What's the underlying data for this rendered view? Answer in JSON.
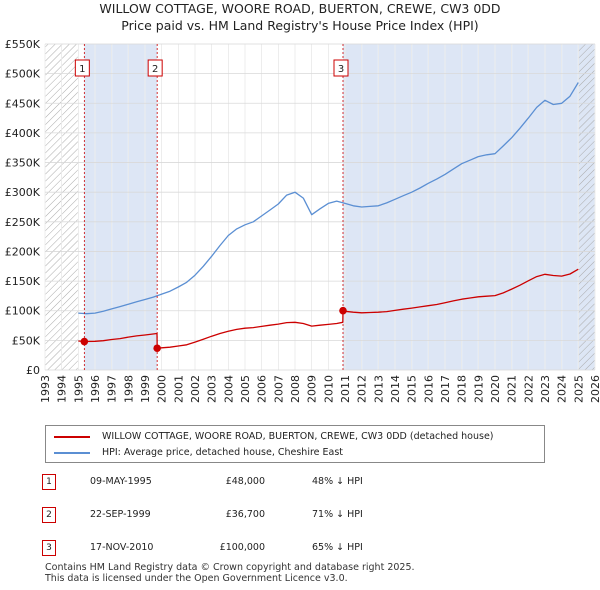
{
  "title_line1": "WILLOW COTTAGE, WOORE ROAD, BUERTON, CREWE, CW3 0DD",
  "title_line2": "Price paid vs. HM Land Registry's House Price Index (HPI)",
  "colors": {
    "property": "#cc0000",
    "hpi": "#5b8fd3",
    "band": "#dde6f5"
  },
  "chart_data": {
    "type": "line",
    "title": "Price paid vs. HM Land Registry's House Price Index (HPI)",
    "xlabel": "",
    "ylabel": "",
    "xlim": [
      1993,
      2026
    ],
    "ylim": [
      0,
      550000
    ],
    "x_ticks": [
      "1993",
      "1994",
      "1995",
      "1996",
      "1997",
      "1998",
      "1999",
      "2000",
      "2001",
      "2002",
      "2003",
      "2004",
      "2005",
      "2006",
      "2007",
      "2008",
      "2009",
      "2010",
      "2011",
      "2012",
      "2013",
      "2014",
      "2015",
      "2016",
      "2017",
      "2018",
      "2019",
      "2020",
      "2021",
      "2022",
      "2023",
      "2024",
      "2025",
      "2026"
    ],
    "y_ticks": [
      {
        "value": 0,
        "label": "£0"
      },
      {
        "value": 50000,
        "label": "£50K"
      },
      {
        "value": 100000,
        "label": "£100K"
      },
      {
        "value": 150000,
        "label": "£150K"
      },
      {
        "value": 200000,
        "label": "£200K"
      },
      {
        "value": 250000,
        "label": "£250K"
      },
      {
        "value": 300000,
        "label": "£300K"
      },
      {
        "value": 350000,
        "label": "£350K"
      },
      {
        "value": 400000,
        "label": "£400K"
      },
      {
        "value": 450000,
        "label": "£450K"
      },
      {
        "value": 500000,
        "label": "£500K"
      },
      {
        "value": 550000,
        "label": "£550K"
      }
    ],
    "grid": true,
    "hatched_ranges": [
      [
        1993,
        1995.0
      ],
      [
        2025.0,
        2026
      ]
    ],
    "shaded_bands": [
      [
        1995.36,
        1999.73
      ],
      [
        2010.88,
        2026
      ]
    ],
    "series": [
      {
        "name": "WILLOW COTTAGE, WOORE ROAD, BUERTON, CREWE, CW3 0DD (detached house)",
        "color": "#cc0000",
        "points": [
          [
            1995.0,
            49000
          ],
          [
            1995.36,
            48000
          ],
          [
            1996,
            48500
          ],
          [
            1996.5,
            49500
          ],
          [
            1997,
            51500
          ],
          [
            1997.5,
            53000
          ],
          [
            1998,
            55500
          ],
          [
            1998.5,
            57500
          ],
          [
            1999,
            59000
          ],
          [
            1999.72,
            61500
          ],
          [
            1999.73,
            36700
          ],
          [
            2000,
            37500
          ],
          [
            2000.5,
            38500
          ],
          [
            2001,
            40500
          ],
          [
            2001.5,
            42500
          ],
          [
            2002,
            47000
          ],
          [
            2002.5,
            52000
          ],
          [
            2003,
            57000
          ],
          [
            2003.5,
            61500
          ],
          [
            2004,
            65500
          ],
          [
            2004.5,
            68500
          ],
          [
            2005,
            70500
          ],
          [
            2005.5,
            71500
          ],
          [
            2006,
            73500
          ],
          [
            2006.5,
            75500
          ],
          [
            2007,
            77500
          ],
          [
            2007.5,
            80000
          ],
          [
            2008,
            80500
          ],
          [
            2008.5,
            78500
          ],
          [
            2009,
            74000
          ],
          [
            2009.5,
            75500
          ],
          [
            2010,
            77000
          ],
          [
            2010.5,
            78500
          ],
          [
            2010.87,
            80500
          ],
          [
            2010.88,
            100000
          ],
          [
            2011,
            99000
          ],
          [
            2011.5,
            97500
          ],
          [
            2012,
            96500
          ],
          [
            2012.5,
            97000
          ],
          [
            2013,
            97500
          ],
          [
            2013.5,
            98500
          ],
          [
            2014,
            100500
          ],
          [
            2014.5,
            102500
          ],
          [
            2015,
            104500
          ],
          [
            2015.5,
            106500
          ],
          [
            2016,
            108500
          ],
          [
            2016.5,
            110500
          ],
          [
            2017,
            113500
          ],
          [
            2017.5,
            116500
          ],
          [
            2018,
            119500
          ],
          [
            2018.5,
            121500
          ],
          [
            2019,
            123500
          ],
          [
            2019.5,
            124500
          ],
          [
            2020,
            125500
          ],
          [
            2020.5,
            130000
          ],
          [
            2021,
            136500
          ],
          [
            2021.5,
            143000
          ],
          [
            2022,
            150500
          ],
          [
            2022.5,
            157500
          ],
          [
            2023,
            161500
          ],
          [
            2023.5,
            159500
          ],
          [
            2024,
            158500
          ],
          [
            2024.5,
            162000
          ],
          [
            2025.0,
            170000
          ]
        ]
      },
      {
        "name": "HPI: Average price, detached house, Cheshire East",
        "color": "#5b8fd3",
        "points": [
          [
            1995.0,
            96000
          ],
          [
            1995.5,
            95000
          ],
          [
            1996,
            96000
          ],
          [
            1996.5,
            99000
          ],
          [
            1997,
            103000
          ],
          [
            1997.5,
            107000
          ],
          [
            1998,
            111000
          ],
          [
            1998.5,
            115000
          ],
          [
            1999,
            119000
          ],
          [
            1999.5,
            123000
          ],
          [
            2000,
            128000
          ],
          [
            2000.5,
            133000
          ],
          [
            2001,
            140000
          ],
          [
            2001.5,
            148000
          ],
          [
            2002,
            160000
          ],
          [
            2002.5,
            175000
          ],
          [
            2003,
            192000
          ],
          [
            2003.5,
            210000
          ],
          [
            2004,
            227000
          ],
          [
            2004.5,
            238000
          ],
          [
            2005,
            245000
          ],
          [
            2005.5,
            250000
          ],
          [
            2006,
            260000
          ],
          [
            2006.5,
            270000
          ],
          [
            2007,
            280000
          ],
          [
            2007.5,
            295000
          ],
          [
            2008,
            300000
          ],
          [
            2008.5,
            290000
          ],
          [
            2009,
            262000
          ],
          [
            2009.5,
            272000
          ],
          [
            2010,
            281000
          ],
          [
            2010.5,
            285000
          ],
          [
            2011,
            281000
          ],
          [
            2011.5,
            277000
          ],
          [
            2012,
            275000
          ],
          [
            2012.5,
            276000
          ],
          [
            2013,
            277000
          ],
          [
            2013.5,
            282000
          ],
          [
            2014,
            288000
          ],
          [
            2014.5,
            294000
          ],
          [
            2015,
            300000
          ],
          [
            2015.5,
            307000
          ],
          [
            2016,
            315000
          ],
          [
            2016.5,
            322000
          ],
          [
            2017,
            330000
          ],
          [
            2017.5,
            339000
          ],
          [
            2018,
            348000
          ],
          [
            2018.5,
            354000
          ],
          [
            2019,
            360000
          ],
          [
            2019.5,
            363000
          ],
          [
            2020,
            365000
          ],
          [
            2020.5,
            378000
          ],
          [
            2021,
            392000
          ],
          [
            2021.5,
            408000
          ],
          [
            2022,
            425000
          ],
          [
            2022.5,
            443000
          ],
          [
            2023,
            455000
          ],
          [
            2023.5,
            448000
          ],
          [
            2024,
            450000
          ],
          [
            2024.5,
            462000
          ],
          [
            2025.0,
            485000
          ]
        ]
      }
    ],
    "sales": [
      {
        "id": "1",
        "x": 1995.36,
        "value": 48000
      },
      {
        "id": "2",
        "x": 1999.73,
        "value": 36700
      },
      {
        "id": "3",
        "x": 2010.88,
        "value": 100000
      }
    ]
  },
  "legend": {
    "property_label": "WILLOW COTTAGE, WOORE ROAD, BUERTON, CREWE, CW3 0DD (detached house)",
    "hpi_label": "HPI: Average price, detached house, Cheshire East"
  },
  "sales_table": [
    {
      "num": "1",
      "date": "09-MAY-1995",
      "price": "£48,000",
      "hpi": "48% ↓ HPI"
    },
    {
      "num": "2",
      "date": "22-SEP-1999",
      "price": "£36,700",
      "hpi": "71% ↓ HPI"
    },
    {
      "num": "3",
      "date": "17-NOV-2010",
      "price": "£100,000",
      "hpi": "65% ↓ HPI"
    }
  ],
  "footer_line1": "Contains HM Land Registry data © Crown copyright and database right 2025.",
  "footer_line2": "This data is licensed under the Open Government Licence v3.0."
}
